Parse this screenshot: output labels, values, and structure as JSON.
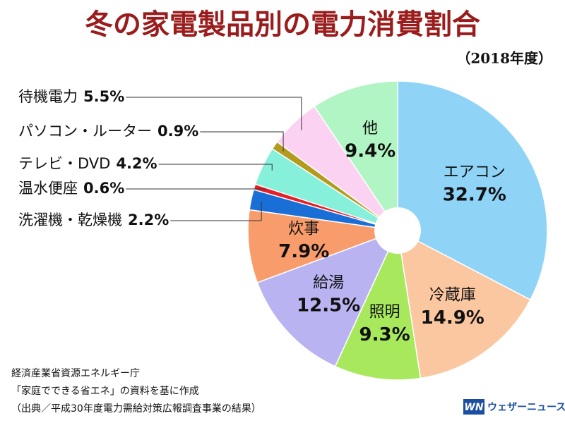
{
  "chart_data": {
    "type": "pie",
    "title": "冬の家電製品別の電力消費割合",
    "subtitle": "（2018年度）",
    "categories": [
      "エアコン",
      "冷蔵庫",
      "照明",
      "給湯",
      "炊事",
      "洗濯機・乾燥機",
      "温水便座",
      "テレビ・DVD",
      "パソコン・ルーター",
      "待機電力",
      "他"
    ],
    "values": [
      32.7,
      14.9,
      9.3,
      12.5,
      7.9,
      2.2,
      0.6,
      4.2,
      0.9,
      5.5,
      9.4
    ],
    "value_labels": [
      "32.7%",
      "14.9%",
      "9.3%",
      "12.5%",
      "7.9%",
      "2.2%",
      "0.6%",
      "4.2%",
      "0.9%",
      "5.5%",
      "9.4%"
    ],
    "colors": [
      "#8fd3f7",
      "#fbc7a0",
      "#a8e85c",
      "#b9b3f2",
      "#f89c6c",
      "#1a6fd6",
      "#e3202a",
      "#86f0da",
      "#b39b1e",
      "#fbd2f2",
      "#b2f5c4"
    ]
  },
  "source": [
    "経済産業省資源エネルギー庁",
    "「家庭でできる省エネ」の資料を基に作成",
    "（出典／平成30年度電力需給対策広報調査事業の結果）"
  ],
  "logo": {
    "mark": "WN",
    "name": "ウェザーニュース"
  }
}
